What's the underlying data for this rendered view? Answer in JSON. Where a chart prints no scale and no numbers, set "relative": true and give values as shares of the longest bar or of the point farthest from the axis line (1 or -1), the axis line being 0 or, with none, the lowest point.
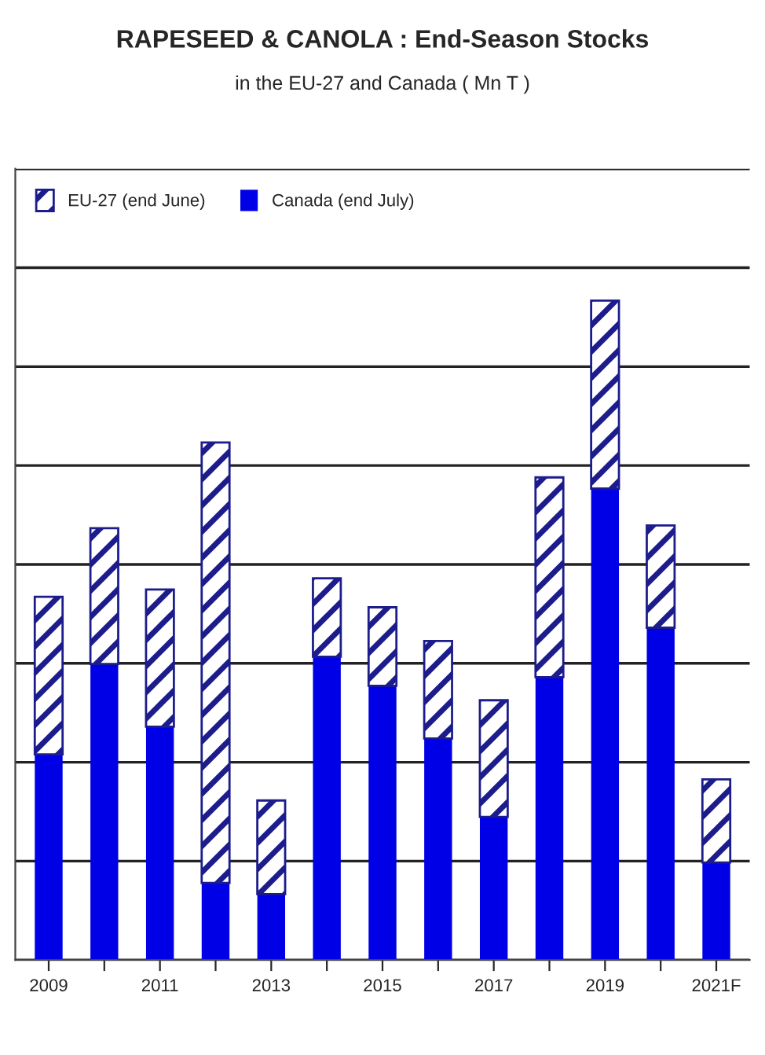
{
  "chart_data": {
    "type": "bar",
    "title": "RAPESEED & CANOLA : End-Season Stocks",
    "subtitle": "in the EU-27 and Canada ( Mn T )",
    "categories": [
      "2009",
      null,
      "2011",
      null,
      "2013",
      null,
      "2015",
      null,
      "2017",
      null,
      "2019",
      null,
      "2021F"
    ],
    "stacked": true,
    "relative": true,
    "grid": "y",
    "legend": "top left",
    "series": [
      {
        "name": "Canada (end July)",
        "color": "#0000e6",
        "values": [
          0.312,
          0.449,
          0.354,
          0.117,
          0.1,
          0.46,
          0.416,
          0.336,
          0.217,
          0.429,
          0.715,
          0.504,
          0.148
        ]
      },
      {
        "name": "EU-27 (end June)",
        "color": "#1c1c8c",
        "values": [
          0.239,
          0.206,
          0.208,
          0.668,
          0.142,
          0.119,
          0.119,
          0.148,
          0.177,
          0.303,
          0.285,
          0.155,
          0.126
        ]
      }
    ]
  }
}
